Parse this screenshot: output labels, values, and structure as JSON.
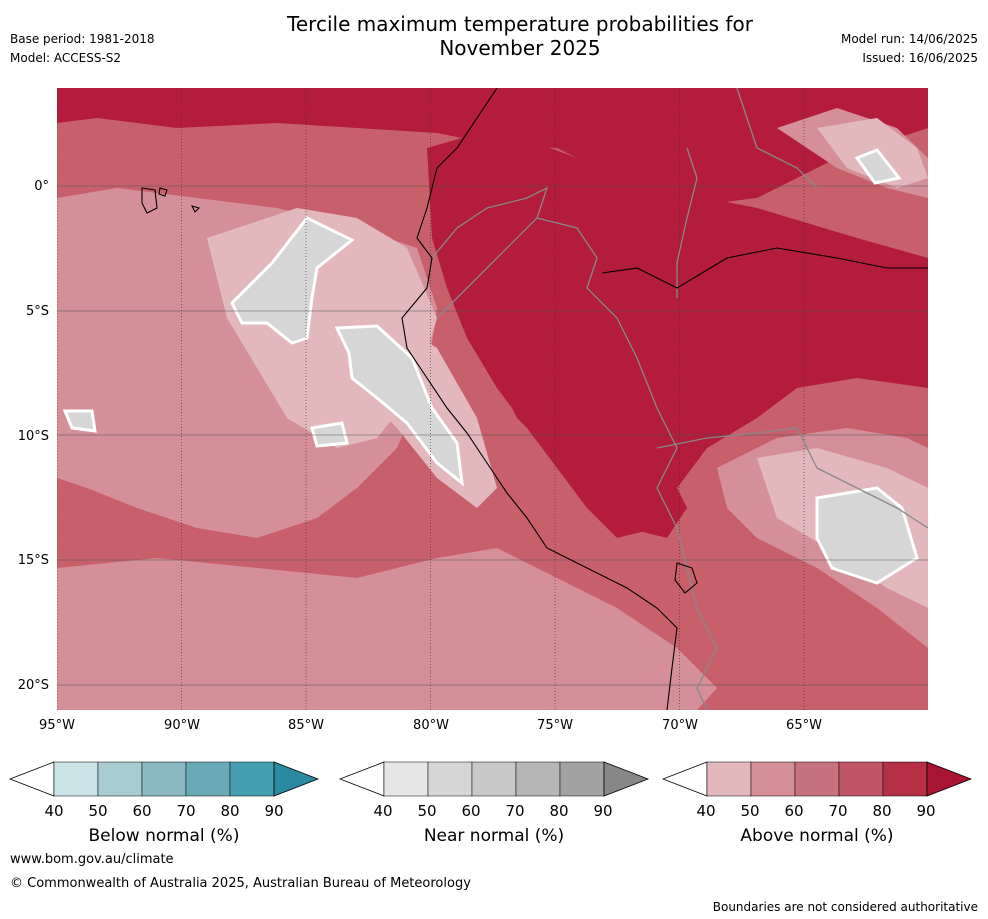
{
  "header": {
    "title_line1": "Tercile maximum temperature probabilities for",
    "title_line2": "November 2025",
    "base_period": "Base period: 1981-2018",
    "model": "Model: ACCESS-S2",
    "model_run": "Model run: 14/06/2025",
    "issued": "Issued: 16/06/2025"
  },
  "map": {
    "lat_labels": [
      "0°",
      "5°S",
      "10°S",
      "15°S",
      "20°S"
    ],
    "lon_labels": [
      "95°W",
      "90°W",
      "85°W",
      "80°W",
      "75°W",
      "70°W",
      "65°W"
    ],
    "colors": {
      "ocean_base": "#c8606c",
      "land_base": "#c03a4e",
      "hot": "#b31c3a",
      "light": "#d58f98",
      "pale": "#e2b8bd",
      "near": "#d6d6d6",
      "coast": "#000000",
      "border": "#888888"
    }
  },
  "colorbars": [
    {
      "label": "Below normal (%)",
      "ticks": [
        "40",
        "50",
        "60",
        "70",
        "80",
        "90"
      ],
      "colors": [
        "#c9e3e7",
        "#a8ccd1",
        "#8ab9c3",
        "#6aaab7",
        "#44a0b0",
        "#2b8aa2"
      ]
    },
    {
      "label": "Near normal (%)",
      "ticks": [
        "40",
        "50",
        "60",
        "70",
        "80",
        "90"
      ],
      "colors": [
        "#e6e6e6",
        "#d6d6d6",
        "#c8c8c8",
        "#b6b6b6",
        "#a2a2a2",
        "#878787"
      ]
    },
    {
      "label": "Above normal (%)",
      "ticks": [
        "40",
        "50",
        "60",
        "70",
        "80",
        "90"
      ],
      "colors": [
        "#e2b8bd",
        "#d58f98",
        "#c87280",
        "#c05666",
        "#b52f45",
        "#a91433"
      ]
    }
  ],
  "footer": {
    "url": "www.bom.gov.au/climate",
    "copyright": "© Commonwealth of Australia 2025, Australian Bureau of Meteorology",
    "disclaimer": "Boundaries are not considered authoritative"
  }
}
